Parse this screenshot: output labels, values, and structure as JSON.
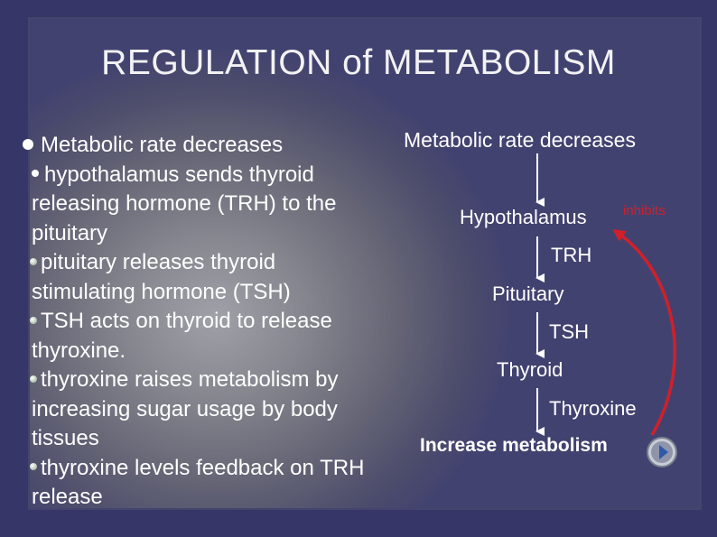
{
  "title": "REGULATION of METABOLISM",
  "bullets": [
    "Metabolic rate decreases",
    "hypothalamus sends thyroid releasing hormone (TRH) to the pituitary",
    "pituitary releases thyroid stimulating hormone (TSH)",
    "TSH acts on thyroid to release thyroxine.",
    "thyroxine raises metabolism by increasing sugar usage by body tissues",
    "thyroxine levels feedback on TRH release"
  ],
  "diagram": {
    "top": "Metabolic rate decreases",
    "hypothalamus": "Hypothalamus",
    "inhibits": "inhibits",
    "trh": "TRH",
    "pituitary": "Pituitary",
    "tsh": "TSH",
    "thyroid": "Thyroid",
    "thyroxine": "Thyroxine",
    "result": "Increase metabolism"
  },
  "colors": {
    "feedback_arrow": "#d0202a",
    "inhibits_text": "#d0202a",
    "background": "#363668"
  },
  "icons": [
    "next-slide-icon"
  ]
}
